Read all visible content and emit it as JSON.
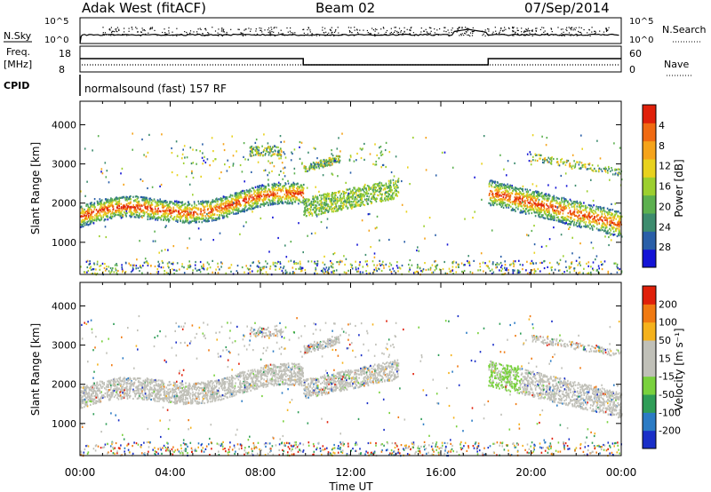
{
  "header": {
    "station": "Adak West (fitACF)",
    "beam": "Beam 02",
    "date": "07/Sep/2014"
  },
  "info_panels": {
    "nsky_label": "N.Sky",
    "nsky_ticks": [
      "10^5",
      "10^0"
    ],
    "nsearch_label": "N.Search",
    "nsearch_ticks": [
      "10^5",
      "10^0"
    ],
    "freq_label": "Freq.",
    "freq_unit": "[MHz]",
    "freq_ticks": [
      "18",
      "8"
    ],
    "nave_label": "Nave",
    "nave_ticks": [
      "60",
      "0"
    ],
    "cpid_label": "CPID",
    "cpid_text": "normalsound (fast) 157 RF"
  },
  "chart_data": [
    {
      "type": "heatmap",
      "ylabel": "Slant Range [km]",
      "xlabel": "Time UT",
      "x_ticks": [
        "00:00",
        "04:00",
        "08:00",
        "12:00",
        "16:00",
        "20:00",
        "00:00"
      ],
      "y_ticks": [
        1000,
        2000,
        3000,
        4000
      ],
      "ylim": [
        180,
        4600
      ],
      "xlim_hours": [
        0,
        24
      ],
      "colorbar_label": "Power [dB]",
      "colorbar_ticks": [
        "4",
        "8",
        "12",
        "16",
        "20",
        "24",
        "28"
      ],
      "colorscale": [
        "#1414d6",
        "#2a5fa8",
        "#3d8c6e",
        "#5cb04f",
        "#9ccf2f",
        "#e8d21e",
        "#f5a31a",
        "#f06a12",
        "#e0200a"
      ]
    },
    {
      "type": "heatmap",
      "ylabel": "Slant Range [km]",
      "xlabel": "Time UT",
      "x_ticks": [
        "00:00",
        "04:00",
        "08:00",
        "12:00",
        "16:00",
        "20:00",
        "00:00"
      ],
      "y_ticks": [
        1000,
        2000,
        3000,
        4000
      ],
      "ylim": [
        180,
        4600
      ],
      "xlim_hours": [
        0,
        24
      ],
      "colorbar_label": "Velocity [m s⁻¹]",
      "colorbar_ticks": [
        "200",
        "100",
        "50",
        "15",
        "-15",
        "-50",
        "-100",
        "-200"
      ],
      "colorscale": [
        "#1a2fc8",
        "#2b7bc4",
        "#2f9d57",
        "#79d13d",
        "#c0c0b8",
        "#c0c0b8",
        "#f5b21c",
        "#f07a12",
        "#e0200a"
      ]
    }
  ],
  "time_axis": {
    "ticks": [
      "00:00",
      "04:00",
      "08:00",
      "12:00",
      "16:00",
      "20:00",
      "00:00"
    ],
    "label": "Time UT"
  }
}
